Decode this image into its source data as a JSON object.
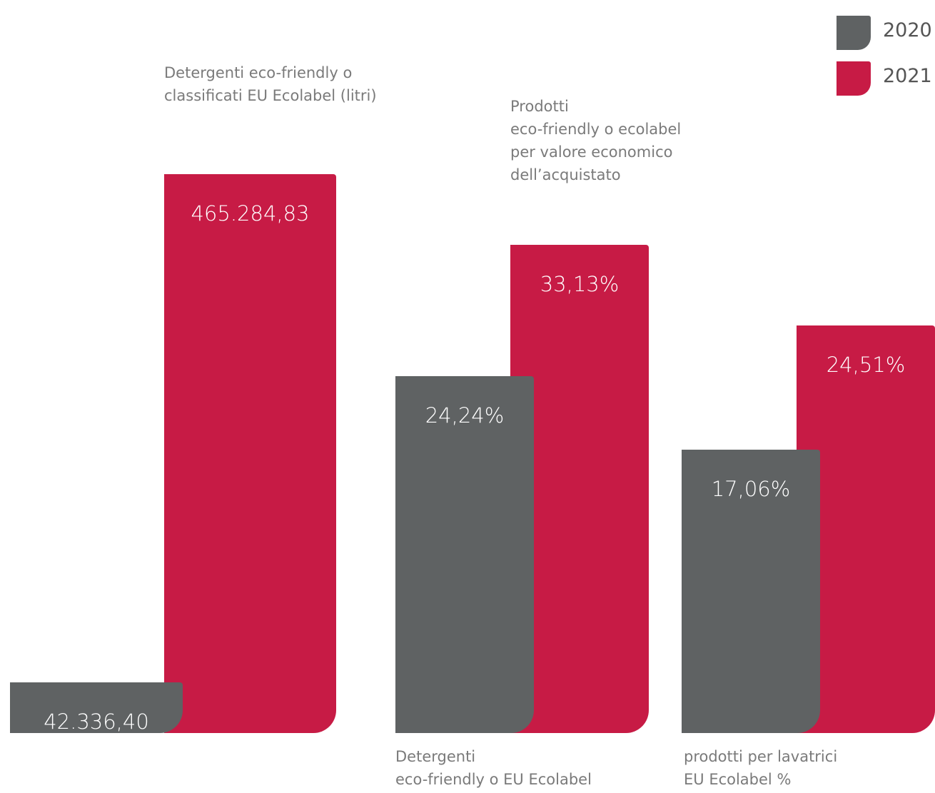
{
  "chart_data": {
    "type": "bar",
    "series": [
      {
        "name": "2020",
        "color": "#5f6263",
        "values": [
          42336.4,
          24.24,
          17.06
        ],
        "value_labels": [
          "42.336,40",
          "24,24%",
          "17,06%"
        ]
      },
      {
        "name": "2021",
        "color": "#c71b45",
        "values": [
          465284.83,
          33.13,
          24.51
        ],
        "value_labels": [
          "465.284,83",
          "33,13%",
          "24,51%"
        ]
      }
    ],
    "annotations": [
      "Detergenti eco-friendly o\nclassificati EU Ecolabel (litri)",
      "Prodotti\neco-friendly o ecolabel\nper valore economico\ndell’acquistato",
      "Detergenti\neco-friendly o EU Ecolabel",
      "prodotti per lavatrici\nEU Ecolabel %"
    ]
  }
}
